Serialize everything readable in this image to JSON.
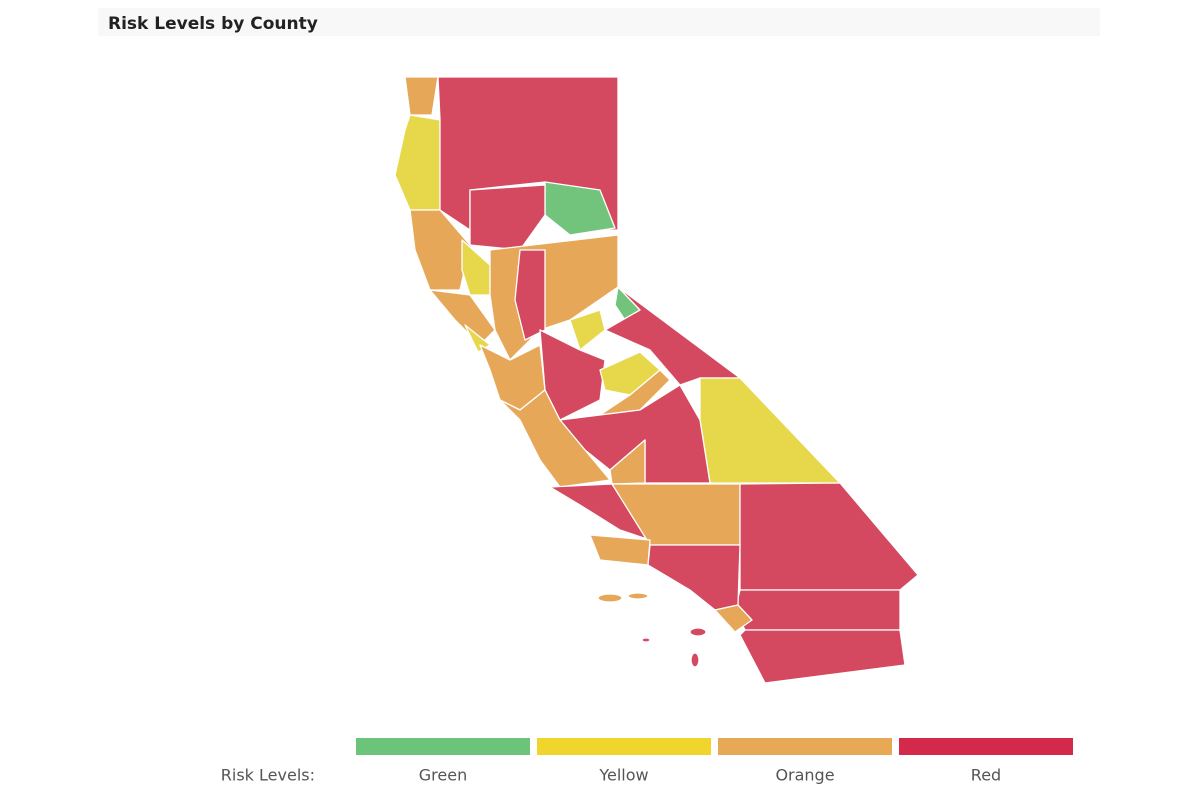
{
  "title": "Risk Levels by County",
  "legend": {
    "label": "Risk Levels:",
    "items": [
      {
        "name": "Green",
        "color": "#6cc47a"
      },
      {
        "name": "Yellow",
        "color": "#efd52c"
      },
      {
        "name": "Orange",
        "color": "#e8a957"
      },
      {
        "name": "Red",
        "color": "#d32a4b"
      }
    ]
  }
}
